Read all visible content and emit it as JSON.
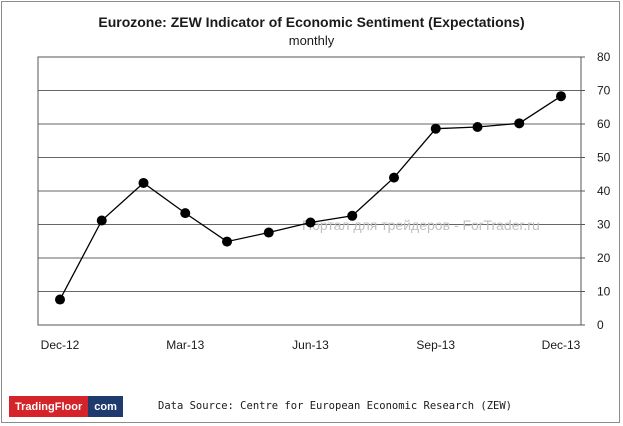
{
  "chart_data": {
    "type": "line",
    "title": "Eurozone: ZEW Indicator of Economic Sentiment (Expectations)",
    "subtitle": "monthly",
    "x": [
      "Dec-12",
      "Jan-13",
      "Feb-13",
      "Mar-13",
      "Apr-13",
      "May-13",
      "Jun-13",
      "Jul-13",
      "Aug-13",
      "Sep-13",
      "Oct-13",
      "Nov-13",
      "Dec-13"
    ],
    "tick_labels": [
      "Dec-12",
      "Mar-13",
      "Jun-13",
      "Sep-13",
      "Dec-13"
    ],
    "values": [
      7.6,
      31.2,
      42.4,
      33.4,
      24.9,
      27.6,
      30.6,
      32.6,
      44.0,
      58.6,
      59.1,
      60.2,
      68.3
    ],
    "ylim": [
      0,
      80
    ],
    "yticks": [
      0,
      10,
      20,
      30,
      40,
      50,
      60,
      70,
      80
    ],
    "y_axis_side": "right",
    "grid": "horizontal",
    "marker": "circle",
    "line_color": "#000000"
  },
  "watermark": "Портал для трейдеров - ForTrader.ru",
  "logo": {
    "part1": "TradingFloor",
    "part2": "com"
  },
  "source": "Data Source: Centre for European Economic Research (ZEW)"
}
